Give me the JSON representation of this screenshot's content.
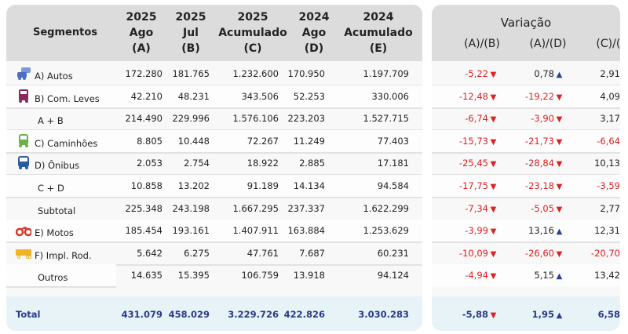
{
  "header": {
    "segments": "Segmentos",
    "columns": [
      [
        "2025",
        "Ago",
        "(A)"
      ],
      [
        "2025",
        "Jul",
        "(B)"
      ],
      [
        "2025",
        "Acumulado",
        "(C)"
      ],
      [
        "2024",
        "Ago",
        "(D)"
      ],
      [
        "2024",
        "Acumulado",
        "(E)"
      ]
    ],
    "variation_title": "Variação",
    "variation_columns": [
      "(A)/(B)",
      "(A)/(D)",
      "(C)/(E)"
    ]
  },
  "colors": {
    "negative": "#e02020",
    "positive_arrow": "#2a3f9a",
    "header_bg": "#dcdcdc",
    "total_bg": "#e7f3f7",
    "total_text": "#2a3a8a"
  },
  "rows": [
    {
      "label": "A) Autos",
      "icon": "car-icon",
      "icon_color": "#4a6fc4",
      "values": [
        "172.280",
        "181.765",
        "1.232.600",
        "170.950",
        "1.197.709"
      ],
      "var": [
        [
          "-5,22",
          "down"
        ],
        [
          "0,78",
          "up"
        ],
        [
          "2,91",
          "up"
        ]
      ]
    },
    {
      "label": "B) Com. Leves",
      "icon": "van-icon",
      "icon_color": "#8a2a5a",
      "values": [
        "42.210",
        "48.231",
        "343.506",
        "52.253",
        "330.006"
      ],
      "var": [
        [
          "-12,48",
          "down"
        ],
        [
          "-19,22",
          "down"
        ],
        [
          "4,09",
          "up"
        ]
      ]
    },
    {
      "label": "A + B",
      "icon": "",
      "values": [
        "214.490",
        "229.996",
        "1.576.106",
        "223.203",
        "1.527.715"
      ],
      "var": [
        [
          "-6,74",
          "down"
        ],
        [
          "-3,90",
          "down"
        ],
        [
          "3,17",
          "up"
        ]
      ]
    },
    {
      "label": "C) Caminhões",
      "icon": "truck-icon",
      "icon_color": "#6ab04c",
      "values": [
        "8.805",
        "10.448",
        "72.267",
        "11.249",
        "77.403"
      ],
      "var": [
        [
          "-15,73",
          "down"
        ],
        [
          "-21,73",
          "down"
        ],
        [
          "-6,64",
          "down"
        ]
      ]
    },
    {
      "label": "D) Ônibus",
      "icon": "bus-icon",
      "icon_color": "#2a5aa0",
      "values": [
        "2.053",
        "2.754",
        "18.922",
        "2.885",
        "17.181"
      ],
      "var": [
        [
          "-25,45",
          "down"
        ],
        [
          "-28,84",
          "down"
        ],
        [
          "10,13",
          "up"
        ]
      ]
    },
    {
      "label": "C + D",
      "icon": "",
      "values": [
        "10.858",
        "13.202",
        "91.189",
        "14.134",
        "94.584"
      ],
      "var": [
        [
          "-17,75",
          "down"
        ],
        [
          "-23,18",
          "down"
        ],
        [
          "-3,59",
          "down"
        ]
      ]
    },
    {
      "label": "Subtotal",
      "icon": "",
      "values": [
        "225.348",
        "243.198",
        "1.667.295",
        "237.337",
        "1.622.299"
      ],
      "var": [
        [
          "-7,34",
          "down"
        ],
        [
          "-5,05",
          "down"
        ],
        [
          "2,77",
          "up"
        ]
      ]
    },
    {
      "label": "E) Motos",
      "icon": "motorcycle-icon",
      "icon_color": "#d9342b",
      "values": [
        "185.454",
        "193.161",
        "1.407.911",
        "163.884",
        "1.253.629"
      ],
      "var": [
        [
          "-3,99",
          "down"
        ],
        [
          "13,16",
          "up"
        ],
        [
          "12,31",
          "up"
        ]
      ]
    },
    {
      "label": "F) Impl. Rod.",
      "icon": "trailer-icon",
      "icon_color": "#f0b429",
      "values": [
        "5.642",
        "6.275",
        "47.761",
        "7.687",
        "60.231"
      ],
      "var": [
        [
          "-10,09",
          "down"
        ],
        [
          "-26,60",
          "down"
        ],
        [
          "-20,70",
          "down"
        ]
      ]
    },
    {
      "label": "Outros",
      "icon": "",
      "values": [
        "14.635",
        "15.395",
        "106.759",
        "13.918",
        "94.124"
      ],
      "var": [
        [
          "-4,94",
          "down"
        ],
        [
          "5,15",
          "up"
        ],
        [
          "13,42",
          "up"
        ]
      ]
    }
  ],
  "total": {
    "label": "Total",
    "values": [
      "431.079",
      "458.029",
      "3.229.726",
      "422.826",
      "3.030.283"
    ],
    "var": [
      [
        "-5,88",
        "down"
      ],
      [
        "1,95",
        "up"
      ],
      [
        "6,58",
        "up"
      ]
    ]
  }
}
